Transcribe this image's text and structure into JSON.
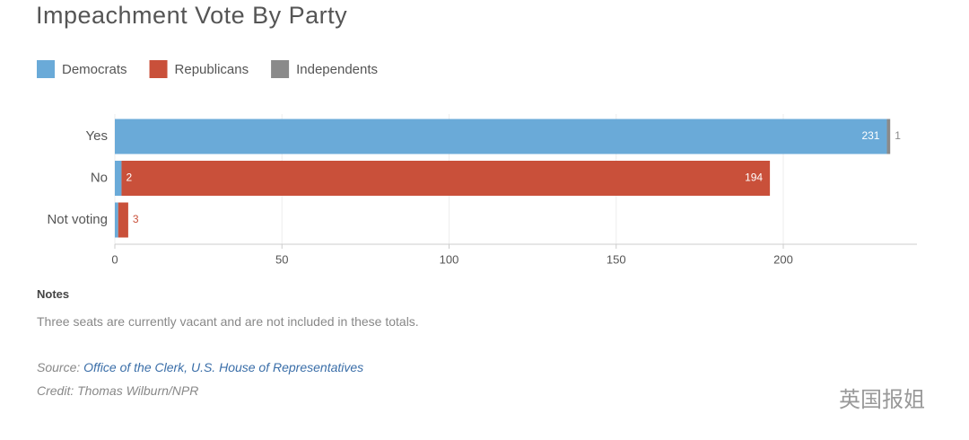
{
  "chart_data": {
    "type": "stacked-bar-horizontal",
    "title": "Impeachment Vote By Party",
    "categories": [
      "Yes",
      "No",
      "Not voting"
    ],
    "series": [
      {
        "name": "Democrats",
        "color": "#6aaad8",
        "values": [
          231,
          2,
          1
        ],
        "value_labels": [
          "231",
          "2",
          null
        ]
      },
      {
        "name": "Republicans",
        "color": "#c9503a",
        "values": [
          0,
          194,
          3
        ],
        "value_labels": [
          null,
          "194",
          "3"
        ]
      },
      {
        "name": "Independents",
        "color": "#8a8a8a",
        "values": [
          1,
          0,
          0
        ],
        "value_labels": [
          "1",
          null,
          null
        ]
      }
    ],
    "xlim": [
      0,
      240
    ],
    "xticks": [
      0,
      50,
      100,
      150,
      200
    ],
    "grid": true,
    "legend": "top-left"
  },
  "notes": {
    "heading": "Notes",
    "text": "Three seats are currently vacant and are not included in these totals."
  },
  "source": {
    "prefix": "Source:",
    "link": "Office of the Clerk, U.S. House of Representatives"
  },
  "credit": "Credit: Thomas Wilburn/NPR",
  "watermark": "英国报姐"
}
